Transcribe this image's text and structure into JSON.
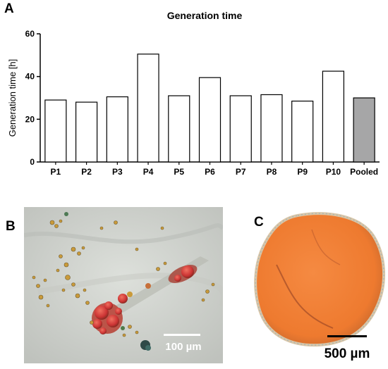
{
  "panels": {
    "a": "A",
    "b": "B",
    "c": "C"
  },
  "chart_data": {
    "type": "bar",
    "title": "Generation time",
    "xlabel": "",
    "ylabel": "Generation time [h]",
    "ylim": [
      0,
      60
    ],
    "yticks": [
      0,
      20,
      40,
      60
    ],
    "categories": [
      "P1",
      "P2",
      "P3",
      "P4",
      "P5",
      "P6",
      "P7",
      "P8",
      "P9",
      "P10",
      "Pooled"
    ],
    "values": [
      29,
      28,
      30.5,
      50.5,
      31,
      39.5,
      31,
      31.5,
      28.5,
      42.5,
      30
    ],
    "bar_colors": [
      "#ffffff",
      "#ffffff",
      "#ffffff",
      "#ffffff",
      "#ffffff",
      "#ffffff",
      "#ffffff",
      "#ffffff",
      "#ffffff",
      "#ffffff",
      "#a6a6a7"
    ],
    "grid": false
  },
  "micrographs": {
    "b": {
      "scale_bar_label": "100 µm"
    },
    "c": {
      "scale_bar_label": "500 µm"
    }
  },
  "colors": {
    "bar_fill": "#ffffff",
    "pooled_fill": "#a6a6a7",
    "stain_red": "#d2403c",
    "stain_orange": "#f07a33",
    "background_b": "#cfd2cc"
  }
}
